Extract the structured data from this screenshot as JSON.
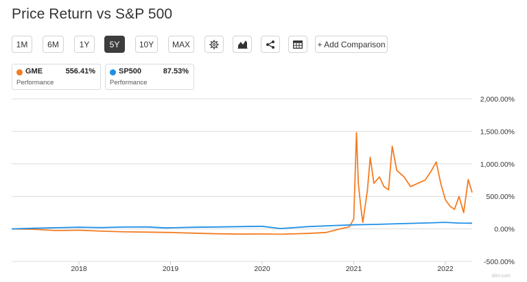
{
  "page": {
    "title": "Price Return vs S&P 500"
  },
  "toolbar": {
    "ranges": [
      {
        "label": "1M",
        "active": false
      },
      {
        "label": "6M",
        "active": false
      },
      {
        "label": "1Y",
        "active": false
      },
      {
        "label": "5Y",
        "active": true
      },
      {
        "label": "10Y",
        "active": false
      },
      {
        "label": "MAX",
        "active": false
      }
    ],
    "icons": [
      "gear-icon",
      "chart-type-icon",
      "share-icon",
      "table-icon"
    ],
    "compare_label": "+ Add Comparison"
  },
  "legend": [
    {
      "symbol": "GME",
      "value": "556.41%",
      "sub": "Performance",
      "color": "#f47b20"
    },
    {
      "symbol": "SP500",
      "value": "87.53%",
      "sub": "Performance",
      "color": "#1e90e8"
    }
  ],
  "watermark": "slim.com",
  "chart_data": {
    "type": "line",
    "x_ticks": [
      "2018",
      "2019",
      "2020",
      "2021",
      "2022"
    ],
    "y_ticks": [
      "2,000.00%",
      "1,500.00%",
      "1,000.00%",
      "500.00%",
      "0.00%",
      "-500.00%"
    ],
    "ylim": [
      -500,
      2000
    ],
    "grid": true,
    "series": [
      {
        "name": "GME",
        "color": "#f47b20",
        "points": [
          [
            2017.25,
            0
          ],
          [
            2017.5,
            -5
          ],
          [
            2017.75,
            -25
          ],
          [
            2018.0,
            -20
          ],
          [
            2018.25,
            -35
          ],
          [
            2018.5,
            -45
          ],
          [
            2018.75,
            -50
          ],
          [
            2019.0,
            -55
          ],
          [
            2019.25,
            -65
          ],
          [
            2019.5,
            -75
          ],
          [
            2019.75,
            -80
          ],
          [
            2020.0,
            -78
          ],
          [
            2020.2,
            -82
          ],
          [
            2020.5,
            -70
          ],
          [
            2020.7,
            -55
          ],
          [
            2020.85,
            0
          ],
          [
            2020.95,
            30
          ],
          [
            2021.0,
            150
          ],
          [
            2021.03,
            1480
          ],
          [
            2021.05,
            700
          ],
          [
            2021.08,
            300
          ],
          [
            2021.1,
            100
          ],
          [
            2021.15,
            600
          ],
          [
            2021.18,
            1100
          ],
          [
            2021.22,
            700
          ],
          [
            2021.28,
            800
          ],
          [
            2021.33,
            650
          ],
          [
            2021.38,
            600
          ],
          [
            2021.42,
            1270
          ],
          [
            2021.47,
            900
          ],
          [
            2021.55,
            800
          ],
          [
            2021.62,
            650
          ],
          [
            2021.7,
            700
          ],
          [
            2021.78,
            750
          ],
          [
            2021.85,
            900
          ],
          [
            2021.9,
            1030
          ],
          [
            2021.95,
            700
          ],
          [
            2022.0,
            450
          ],
          [
            2022.05,
            350
          ],
          [
            2022.1,
            300
          ],
          [
            2022.15,
            500
          ],
          [
            2022.2,
            250
          ],
          [
            2022.25,
            760
          ],
          [
            2022.3,
            560
          ]
        ]
      },
      {
        "name": "SP500",
        "color": "#1e90e8",
        "points": [
          [
            2017.25,
            0
          ],
          [
            2017.5,
            10
          ],
          [
            2017.75,
            18
          ],
          [
            2018.0,
            25
          ],
          [
            2018.25,
            20
          ],
          [
            2018.5,
            28
          ],
          [
            2018.75,
            30
          ],
          [
            2018.95,
            15
          ],
          [
            2019.25,
            25
          ],
          [
            2019.5,
            30
          ],
          [
            2019.75,
            35
          ],
          [
            2020.0,
            40
          ],
          [
            2020.2,
            5
          ],
          [
            2020.5,
            35
          ],
          [
            2020.75,
            50
          ],
          [
            2021.0,
            62
          ],
          [
            2021.25,
            70
          ],
          [
            2021.5,
            80
          ],
          [
            2021.75,
            90
          ],
          [
            2022.0,
            100
          ],
          [
            2022.15,
            90
          ],
          [
            2022.3,
            88
          ]
        ]
      }
    ]
  }
}
